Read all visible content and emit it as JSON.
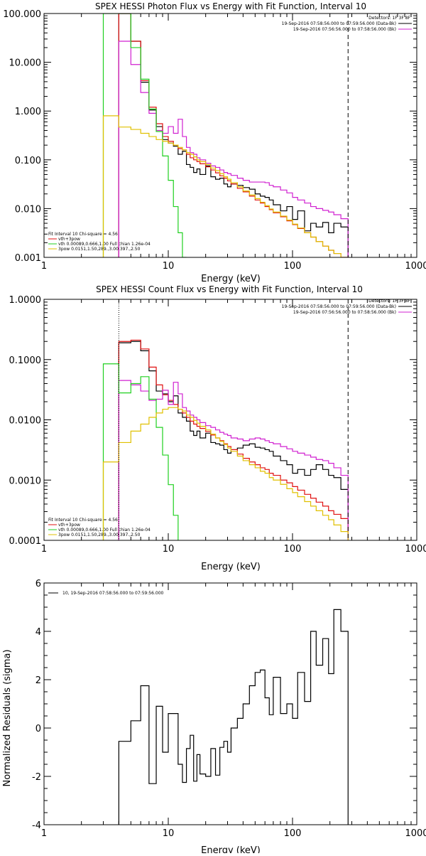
{
  "chart_data": [
    {
      "type": "line",
      "title": "SPEX HESSI Photon Flux vs Energy with Fit Function, Interval 10",
      "xlabel": "Energy (keV)",
      "ylabel": "",
      "xscale": "log",
      "yscale": "log",
      "xlim": [
        1,
        1000
      ],
      "ylim": [
        0.001,
        100
      ],
      "xticks": [
        "1",
        "10",
        "100",
        "1000"
      ],
      "yticks": [
        "0.001",
        "0.010",
        "0.100",
        "1.000",
        "10.000",
        "100.000"
      ],
      "vline_dotted_x": null,
      "vline_dashed_x": 280,
      "info_top": [
        "Detectors: 1F 3F 8F",
        "19-Sep-2016 07:58:56.000 to 07:59:56.000 (Data-Bk)",
        "19-Sep-2016 07:56:56.000 to 07:58:56.000 (Bk)"
      ],
      "info_bottom": [
        "Fit Interval 10    Chi-square = 4.56",
        "vth+3pow",
        "vth 0.00089,0.666,1.00   Full chian 1.26e-04",
        "3pow 0.0151,1.50,289.,3.00,397.,2.50"
      ],
      "bin_edges": [
        3.0,
        4.0,
        5.0,
        6.0,
        7.0,
        8.0,
        9.0,
        10.0,
        11.0,
        12.0,
        13.0,
        14.0,
        15.0,
        16.0,
        17.0,
        18.0,
        20.0,
        22.0,
        24.0,
        26.0,
        28.0,
        30.0,
        32.0,
        36.0,
        40.0,
        45.0,
        50.0,
        55.0,
        60.0,
        65.0,
        70.0,
        80.0,
        90.0,
        100.0,
        110.0,
        125.0,
        140.0,
        155.0,
        175.0,
        195.0,
        215.0,
        245.0,
        280.0
      ],
      "series": [
        {
          "name": "Data-Bk",
          "color": "#000000",
          "values": [
            null,
            100,
            27,
            3.9,
            1.05,
            0.48,
            0.26,
            0.22,
            0.19,
            0.13,
            0.15,
            0.08,
            0.07,
            0.055,
            0.065,
            0.05,
            0.075,
            0.045,
            0.04,
            0.042,
            0.032,
            0.028,
            0.032,
            0.03,
            0.027,
            0.025,
            0.02,
            0.018,
            0.017,
            0.015,
            0.012,
            0.009,
            0.011,
            0.006,
            0.009,
            0.0035,
            0.005,
            0.0042,
            0.0052,
            0.0032,
            0.005,
            0.0042
          ]
        },
        {
          "name": "vth+3pow",
          "color": "#e01010",
          "values": [
            null,
            100,
            27,
            4.2,
            1.2,
            0.55,
            0.3,
            0.24,
            0.2,
            0.17,
            0.16,
            0.13,
            0.11,
            0.1,
            0.092,
            0.083,
            0.072,
            0.062,
            0.054,
            0.047,
            0.042,
            0.037,
            0.032,
            0.026,
            0.022,
            0.018,
            0.015,
            0.013,
            0.011,
            0.0095,
            0.0082,
            0.0068,
            0.0056,
            0.0047,
            0.0039,
            0.0032,
            0.0026,
            0.0021,
            0.0017,
            0.0014,
            0.0012,
            0.001
          ]
        },
        {
          "name": "Bk",
          "color": "#d020d0",
          "values": [
            null,
            27,
            9,
            2.4,
            0.9,
            0.4,
            0.35,
            0.48,
            0.35,
            0.68,
            0.3,
            0.18,
            0.14,
            0.13,
            0.11,
            0.1,
            0.085,
            0.075,
            0.07,
            0.062,
            0.055,
            0.052,
            0.048,
            0.042,
            0.038,
            0.035,
            0.035,
            0.035,
            0.034,
            0.03,
            0.028,
            0.024,
            0.021,
            0.017,
            0.015,
            0.013,
            0.011,
            0.01,
            0.0092,
            0.0085,
            0.0075,
            0.0062
          ]
        },
        {
          "name": "vth",
          "color": "#20d020",
          "values": [
            100,
            100,
            20,
            4.5,
            1.1,
            0.38,
            0.12,
            0.038,
            0.011,
            0.0032,
            0.0009,
            null,
            null,
            null,
            null,
            null,
            null,
            null,
            null,
            null,
            null,
            null,
            null,
            null,
            null,
            null,
            null,
            null,
            null,
            null,
            null,
            null,
            null,
            null,
            null,
            null,
            null,
            null,
            null,
            null,
            null,
            null
          ]
        },
        {
          "name": "3pow",
          "color": "#e0c000",
          "values": [
            0.8,
            0.47,
            0.42,
            0.35,
            0.3,
            0.26,
            0.24,
            0.22,
            0.2,
            0.18,
            0.16,
            0.14,
            0.13,
            0.115,
            0.1,
            0.092,
            0.08,
            0.068,
            0.06,
            0.052,
            0.045,
            0.04,
            0.034,
            0.028,
            0.023,
            0.019,
            0.016,
            0.0135,
            0.0115,
            0.0098,
            0.0085,
            0.007,
            0.0058,
            0.0048,
            0.004,
            0.0032,
            0.0026,
            0.0021,
            0.0017,
            0.0014,
            0.0012,
            0.001
          ]
        }
      ]
    },
    {
      "type": "line",
      "title": "SPEX HESSI Count Flux vs Energy with Fit Function, Interval 10",
      "xlabel": "Energy (keV)",
      "ylabel": "",
      "xscale": "log",
      "yscale": "log",
      "xlim": [
        1,
        1000
      ],
      "ylim": [
        0.0001,
        1
      ],
      "xticks": [
        "1",
        "10",
        "100",
        "1000"
      ],
      "yticks": [
        "0.0001",
        "0.0010",
        "0.0100",
        "0.1000",
        "1.0000"
      ],
      "vline_dotted_x": 4,
      "vline_dashed_x": 280,
      "info_top": [
        "Detectors: 1F 3F 8F",
        "19-Sep-2016 07:58:56.000 to 07:59:56.000 (Data-Bk)",
        "19-Sep-2016 07:56:56.000 to 07:58:56.000 (Bk)"
      ],
      "info_bottom": [
        "Fit Interval 10    Chi-square = 4.56",
        "vth+3pow",
        "vth 0.00089,0.666,1.00   Full chian 1.26e-04",
        "3pow 0.0151,1.50,289.,3.00,397.,2.50"
      ],
      "bin_edges": [
        3.0,
        4.0,
        5.0,
        6.0,
        7.0,
        8.0,
        9.0,
        10.0,
        11.0,
        12.0,
        13.0,
        14.0,
        15.0,
        16.0,
        17.0,
        18.0,
        20.0,
        22.0,
        24.0,
        26.0,
        28.0,
        30.0,
        32.0,
        36.0,
        40.0,
        45.0,
        50.0,
        55.0,
        60.0,
        65.0,
        70.0,
        80.0,
        90.0,
        100.0,
        110.0,
        125.0,
        140.0,
        155.0,
        175.0,
        195.0,
        215.0,
        245.0,
        280.0
      ],
      "series": [
        {
          "name": "Data-Bk",
          "color": "#000000",
          "values": [
            null,
            0.19,
            0.2,
            0.14,
            0.065,
            0.03,
            0.027,
            0.02,
            0.025,
            0.013,
            0.011,
            0.0095,
            0.0065,
            0.0055,
            0.0065,
            0.005,
            0.006,
            0.0042,
            0.004,
            0.0038,
            0.0032,
            0.0028,
            0.0032,
            0.0034,
            0.0038,
            0.004,
            0.0035,
            0.0034,
            0.0032,
            0.003,
            0.0025,
            0.0021,
            0.0018,
            0.0013,
            0.0015,
            0.0012,
            0.0015,
            0.0018,
            0.0015,
            0.0012,
            0.0011,
            0.0007
          ]
        },
        {
          "name": "vth+3pow",
          "color": "#e01010",
          "values": [
            null,
            0.2,
            0.21,
            0.15,
            0.075,
            0.038,
            0.026,
            0.021,
            0.018,
            0.015,
            0.013,
            0.011,
            0.0095,
            0.0085,
            0.0078,
            0.0072,
            0.0064,
            0.0056,
            0.005,
            0.0045,
            0.004,
            0.0036,
            0.0032,
            0.0027,
            0.0023,
            0.002,
            0.0018,
            0.0016,
            0.0015,
            0.0013,
            0.0012,
            0.001,
            0.0009,
            0.00078,
            0.00068,
            0.00058,
            0.0005,
            0.00043,
            0.00037,
            0.00031,
            0.00027,
            0.00023
          ]
        },
        {
          "name": "Bk",
          "color": "#d020d0",
          "values": [
            null,
            0.045,
            0.038,
            0.03,
            0.021,
            0.022,
            0.031,
            0.018,
            0.042,
            0.027,
            0.016,
            0.014,
            0.012,
            0.011,
            0.01,
            0.009,
            0.008,
            0.0075,
            0.0068,
            0.0062,
            0.0058,
            0.0055,
            0.005,
            0.0048,
            0.0045,
            0.0048,
            0.005,
            0.0048,
            0.0045,
            0.0042,
            0.004,
            0.0036,
            0.0033,
            0.003,
            0.0028,
            0.0026,
            0.0024,
            0.0022,
            0.0021,
            0.0019,
            0.0016,
            0.0012
          ]
        },
        {
          "name": "vth",
          "color": "#20d020",
          "values": [
            0.085,
            0.028,
            0.04,
            0.052,
            0.022,
            0.0075,
            0.0026,
            0.00084,
            0.00026,
            null,
            null,
            null,
            null,
            null,
            null,
            null,
            null,
            null,
            null,
            null,
            null,
            null,
            null,
            null,
            null,
            null,
            null,
            null,
            null,
            null,
            null,
            null,
            null,
            null,
            null,
            null,
            null,
            null,
            null,
            null,
            null,
            null
          ]
        },
        {
          "name": "3pow",
          "color": "#e0c000",
          "values": [
            0.002,
            0.0042,
            0.0065,
            0.0085,
            0.011,
            0.013,
            0.015,
            0.016,
            0.016,
            0.015,
            0.014,
            0.012,
            0.011,
            0.0098,
            0.0088,
            0.0078,
            0.0068,
            0.0058,
            0.005,
            0.0044,
            0.0039,
            0.0034,
            0.003,
            0.0025,
            0.0021,
            0.0018,
            0.0016,
            0.0014,
            0.0013,
            0.0011,
            0.001,
            0.00085,
            0.00072,
            0.00062,
            0.00053,
            0.00044,
            0.00037,
            0.00031,
            0.00026,
            0.00022,
            0.00018,
            0.00014
          ]
        }
      ]
    },
    {
      "type": "line",
      "title": "",
      "xlabel": "Energy (keV)",
      "ylabel": "Normalized Residuals (sigma)",
      "xscale": "log",
      "yscale": "linear",
      "xlim": [
        1,
        1000
      ],
      "ylim": [
        -4,
        6
      ],
      "xticks": [
        "1",
        "10",
        "100",
        "1000"
      ],
      "yticks": [
        "-4",
        "-2",
        "0",
        "2",
        "4",
        "6"
      ],
      "legend": "10, 19-Sep-2016 07:58:56.000 to 07:59:56.000",
      "bin_edges": [
        4.0,
        5.0,
        6.0,
        7.0,
        8.0,
        9.0,
        10.0,
        11.0,
        12.0,
        13.0,
        14.0,
        15.0,
        16.0,
        17.0,
        18.0,
        20.0,
        22.0,
        24.0,
        26.0,
        28.0,
        30.0,
        32.0,
        36.0,
        40.0,
        45.0,
        50.0,
        55.0,
        60.0,
        65.0,
        70.0,
        80.0,
        90.0,
        100.0,
        110.0,
        125.0,
        140.0,
        155.0,
        175.0,
        195.0,
        215.0,
        245.0,
        280.0
      ],
      "series": [
        {
          "name": "Residuals",
          "color": "#000000",
          "values": [
            -0.55,
            0.3,
            1.75,
            -2.3,
            0.9,
            -1.0,
            0.6,
            0.6,
            -1.5,
            -2.25,
            -0.85,
            -0.3,
            -2.2,
            -1.1,
            -1.9,
            -2.0,
            -0.85,
            -1.95,
            -0.8,
            -0.55,
            -1.0,
            0.0,
            0.4,
            1.0,
            1.75,
            2.3,
            2.4,
            1.25,
            0.55,
            2.1,
            0.6,
            1.0,
            0.4,
            2.3,
            1.1,
            4.0,
            2.6,
            3.7,
            2.25,
            4.9,
            4.0
          ]
        }
      ]
    }
  ]
}
